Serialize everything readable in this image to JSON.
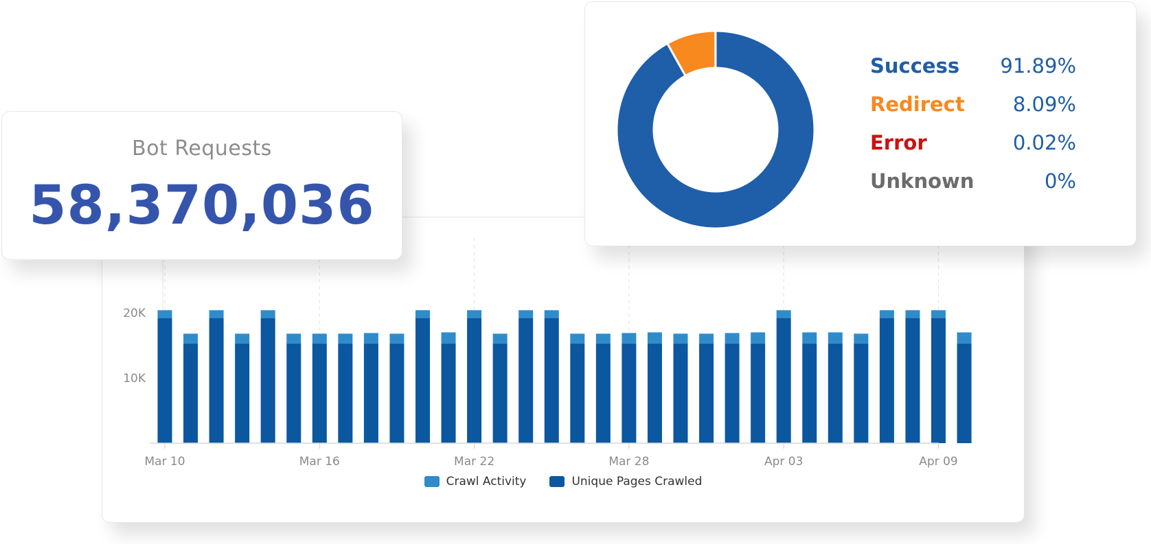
{
  "kpi": {
    "label": "Bot Requests",
    "value": "58,370,036"
  },
  "status_breakdown": [
    {
      "name": "Success",
      "value": "91.89%",
      "color": "#1f5ea8"
    },
    {
      "name": "Redirect",
      "value": "8.09%",
      "color": "#f7891f"
    },
    {
      "name": "Error",
      "value": "0.02%",
      "color": "#cc1111"
    },
    {
      "name": "Unknown",
      "value": "0%",
      "color": "#6b6b6b"
    }
  ],
  "legend": {
    "crawl": {
      "label": "Crawl Activity",
      "color": "#2e8ccb"
    },
    "unique": {
      "label": "Unique Pages Crawled",
      "color": "#0b57a0"
    }
  },
  "chart_data": [
    {
      "type": "bar",
      "stacked": true,
      "x_ticks": [
        "Mar 10",
        "Mar 16",
        "Mar 22",
        "Mar 28",
        "Apr 03",
        "Apr 09"
      ],
      "y_ticks": [
        "10K",
        "20K"
      ],
      "ylim": [
        0,
        20000
      ],
      "series": [
        {
          "name": "Unique Pages Crawled",
          "values": [
            19200,
            15300,
            19200,
            15300,
            19200,
            15300,
            15300,
            15300,
            15300,
            15300,
            19200,
            15300,
            19200,
            15300,
            19200,
            19200,
            15300,
            15300,
            15300,
            15300,
            15300,
            15300,
            15300,
            15300,
            19200,
            15300,
            15300,
            15300,
            19200,
            19200,
            19200,
            15300
          ]
        },
        {
          "name": "Crawl Activity",
          "values": [
            1200,
            1500,
            1200,
            1500,
            1200,
            1500,
            1500,
            1500,
            1600,
            1500,
            1200,
            1700,
            1200,
            1500,
            1200,
            1200,
            1500,
            1500,
            1600,
            1700,
            1500,
            1500,
            1600,
            1700,
            1200,
            1700,
            1700,
            1500,
            1200,
            1200,
            1200,
            1700
          ]
        }
      ]
    },
    {
      "type": "pie",
      "donut": true,
      "slices": [
        {
          "name": "Success",
          "value": 91.89
        },
        {
          "name": "Redirect",
          "value": 8.09
        },
        {
          "name": "Error",
          "value": 0.02
        },
        {
          "name": "Unknown",
          "value": 0
        }
      ]
    }
  ]
}
